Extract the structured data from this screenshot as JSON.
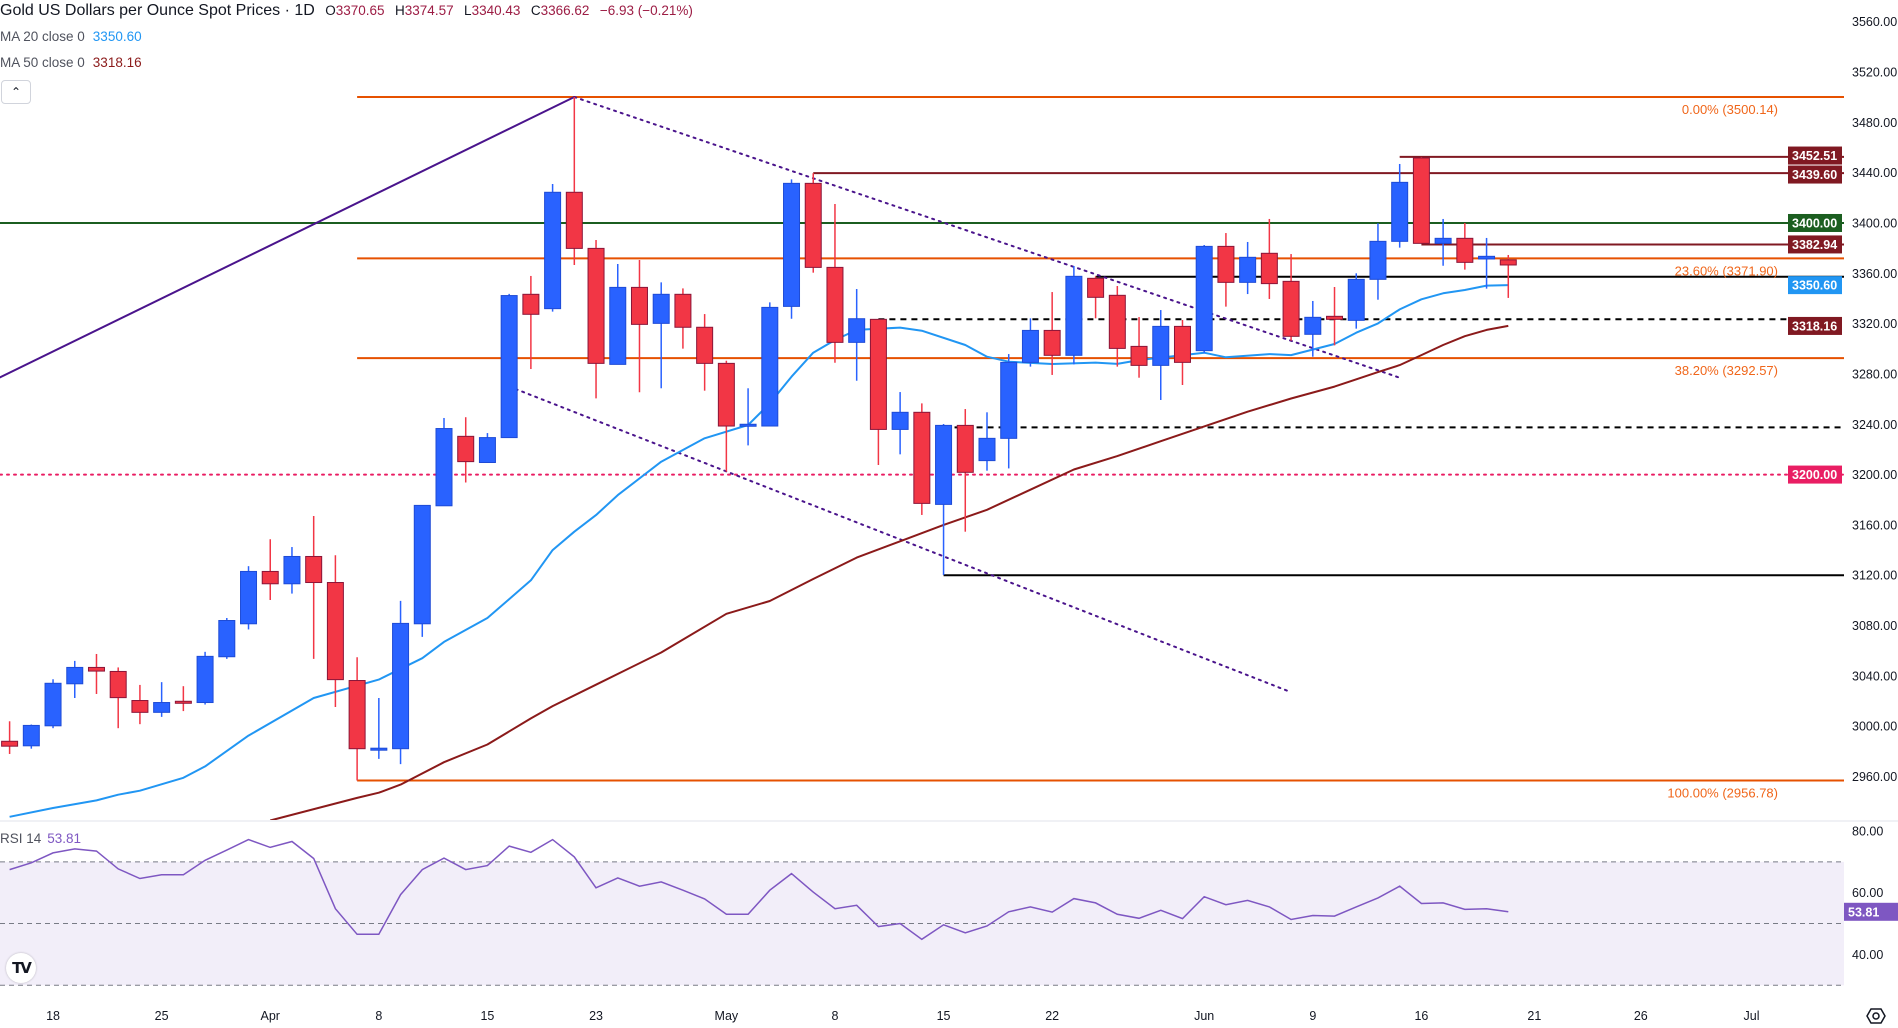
{
  "header": {
    "title": "Gold US Dollars per Ounce Spot Prices · 1D",
    "open_label": "O",
    "open": "3370.65",
    "high_label": "H",
    "high": "3374.57",
    "low_label": "L",
    "low": "3340.43",
    "close_label": "C",
    "close": "3366.62",
    "change": "−6.93 (−0.21%)"
  },
  "indicators": {
    "ma20": {
      "label": "MA 20 close 0",
      "value": "3350.60",
      "color": "#2196f3"
    },
    "ma50": {
      "label": "MA 50 close 0",
      "value": "3318.16",
      "color": "#8b1a1a"
    },
    "rsi": {
      "label": "RSI 14",
      "value": "53.81",
      "color": "#7e57c2"
    }
  },
  "controls": {
    "collapse_icon": "chevron-up-icon",
    "settings_icon": "gear-icon",
    "logo": "TV"
  },
  "colors": {
    "up": "#2962ff",
    "down": "#f23645",
    "fib": "#e65100",
    "resistance": "#801922",
    "support_3400": "#1b5e20",
    "level_3200": "#e91e63",
    "trendline": "#4a148c"
  },
  "price_axis": {
    "ticks": [
      "3560.00",
      "3520.00",
      "3480.00",
      "3440.00",
      "3400.00",
      "3360.00",
      "3320.00",
      "3280.00",
      "3240.00",
      "3200.00",
      "3160.00",
      "3120.00",
      "3080.00",
      "3040.00",
      "3000.00",
      "2960.00"
    ]
  },
  "rsi_axis": {
    "ticks": [
      "80.00",
      "60.00",
      "40.00"
    ],
    "bands": [
      70,
      50,
      30
    ]
  },
  "time_axis": {
    "labels": [
      "18",
      "25",
      "Apr",
      "8",
      "15",
      "23",
      "May",
      "8",
      "15",
      "22",
      "Jun",
      "9",
      "16",
      "21",
      "26",
      "Jul"
    ]
  },
  "badges": [
    {
      "text": "3452.51",
      "price": 3452.51,
      "color": "#801922"
    },
    {
      "text": "3439.60",
      "price": 3439.6,
      "color": "#801922"
    },
    {
      "text": "3400.00",
      "price": 3400.0,
      "color": "#1b5e20"
    },
    {
      "text": "3382.94",
      "price": 3382.94,
      "color": "#801922"
    },
    {
      "text": "3350.60",
      "price": 3350.6,
      "color": "#2196f3"
    },
    {
      "text": "3318.16",
      "price": 3318.16,
      "color": "#801922"
    },
    {
      "text": "3200.00",
      "price": 3200.0,
      "color": "#e91e63"
    }
  ],
  "rsi_badge": {
    "text": "53.81",
    "value": 53.81,
    "color": "#7e57c2"
  },
  "fib_levels": [
    {
      "label": "0.00% (3500.14)",
      "price": 3500.14
    },
    {
      "label": "23.60% (3371.90)",
      "price": 3371.9
    },
    {
      "label": "38.20% (3292.57)",
      "price": 3292.57
    },
    {
      "label": "100.00% (2956.78)",
      "price": 2956.78
    }
  ],
  "fib_start": "Apr 7",
  "horizontal_lines": [
    {
      "price": 3452.51,
      "from": "Jun 13",
      "color": "#801922",
      "style": "solid"
    },
    {
      "price": 3439.6,
      "from": "May 7",
      "color": "#801922",
      "style": "solid"
    },
    {
      "price": 3400.0,
      "from": null,
      "color": "#1b5e20",
      "style": "solid"
    },
    {
      "price": 3382.94,
      "from": "Jun 16",
      "color": "#801922",
      "style": "solid"
    },
    {
      "price": 3357.3,
      "from": "May 26",
      "color": "#000000",
      "style": "solid"
    },
    {
      "price": 3323.5,
      "from": "May 12",
      "color": "#000000",
      "style": "dashed"
    },
    {
      "price": 3237.5,
      "from": "May 15",
      "color": "#000000",
      "style": "dashed"
    },
    {
      "price": 3200.0,
      "from": null,
      "color": "#e91e63",
      "style": "dotted"
    },
    {
      "price": 3120.0,
      "from": "May 15",
      "color": "#000000",
      "style": "solid"
    }
  ],
  "trend_lines": [
    {
      "from": [
        "Mar 14",
        3281
      ],
      "to": [
        "Apr 22",
        3500.14
      ],
      "extend_left": true,
      "color": "#4a148c",
      "style": "solid"
    },
    {
      "from": [
        "Apr 22",
        3500.14
      ],
      "to": [
        "Jun 13",
        3277
      ],
      "color": "#4a148c",
      "style": "dotted"
    },
    {
      "from": [
        "Apr 16",
        3270
      ],
      "to": [
        "Jun 6",
        3027
      ],
      "color": "#4a148c",
      "style": "dotted"
    }
  ],
  "chart_data": {
    "type": "candlestick",
    "price_range": [
      2935,
      3577
    ],
    "columns": [
      "date",
      "open",
      "high",
      "low",
      "close"
    ],
    "candles": [
      [
        "Mar 14",
        2988.0,
        3003.9,
        2977.9,
        2984.1
      ],
      [
        "Mar 17",
        2984.4,
        3001.3,
        2982.1,
        3000.6
      ],
      [
        "Mar 18",
        3000.3,
        3037.3,
        2998.4,
        3034.1
      ],
      [
        "Mar 19",
        3033.7,
        3051.9,
        3022.4,
        3046.7
      ],
      [
        "Mar 20",
        3046.7,
        3057.4,
        3025.6,
        3043.8
      ],
      [
        "Mar 21",
        3043.5,
        3046.7,
        2998.4,
        3022.7
      ],
      [
        "Mar 24",
        3020.4,
        3032.8,
        3001.6,
        3011.0
      ],
      [
        "Mar 25",
        3011.0,
        3035.0,
        3007.4,
        3018.8
      ],
      [
        "Mar 26",
        3019.8,
        3031.8,
        3012.0,
        3019.6
      ],
      [
        "Mar 27",
        3018.8,
        3059.1,
        3017.2,
        3055.5
      ],
      [
        "Mar 28",
        3055.2,
        3086.0,
        3053.5,
        3084.0
      ],
      [
        "Mar 31",
        3081.4,
        3127.2,
        3076.9,
        3123.0
      ],
      [
        "Apr 1",
        3123.0,
        3148.6,
        3100.3,
        3113.2
      ],
      [
        "Apr 2",
        3113.2,
        3142.4,
        3105.4,
        3134.9
      ],
      [
        "Apr 3",
        3134.9,
        3167.1,
        3053.5,
        3114.2
      ],
      [
        "Apr 4",
        3114.2,
        3135.9,
        3015.2,
        3037.0
      ],
      [
        "Apr 7",
        3036.3,
        3054.8,
        2956.8,
        2982.1
      ],
      [
        "Apr 8",
        2982.1,
        3022.4,
        2974.0,
        2982.5
      ],
      [
        "Apr 9",
        2982.1,
        3099.6,
        2969.8,
        3081.7
      ],
      [
        "Apr 10",
        3081.4,
        3175.5,
        3071.0,
        3175.5
      ],
      [
        "Apr 11",
        3175.2,
        3245.0,
        3175.2,
        3236.6
      ],
      [
        "Apr 14",
        3230.4,
        3245.6,
        3193.7,
        3210.3
      ],
      [
        "Apr 15",
        3209.6,
        3233.0,
        3209.6,
        3229.4
      ],
      [
        "Apr 16",
        3229.4,
        3343.6,
        3229.4,
        3342.3
      ],
      [
        "Apr 17",
        3343.3,
        3357.9,
        3283.9,
        3327.4
      ],
      [
        "Apr 21",
        3331.9,
        3431.0,
        3329.5,
        3424.4
      ],
      [
        "Apr 22",
        3424.4,
        3500.1,
        3366.6,
        3379.8
      ],
      [
        "Apr 23",
        3379.8,
        3386.5,
        3260.6,
        3288.4
      ],
      [
        "Apr 24",
        3287.6,
        3367.4,
        3287.6,
        3348.8
      ],
      [
        "Apr 25",
        3348.8,
        3370.6,
        3265.4,
        3319.4
      ],
      [
        "Apr 28",
        3320.2,
        3352.8,
        3268.6,
        3343.3
      ],
      [
        "Apr 29",
        3343.3,
        3348.0,
        3300.1,
        3317.1
      ],
      [
        "Apr 30",
        3317.1,
        3327.6,
        3266.7,
        3288.4
      ],
      [
        "May 1",
        3288.4,
        3290.5,
        3202.3,
        3238.6
      ],
      [
        "May 2",
        3239.4,
        3268.6,
        3223.2,
        3240.0
      ],
      [
        "May 5",
        3238.6,
        3336.9,
        3238.6,
        3332.9
      ],
      [
        "May 6",
        3333.7,
        3434.7,
        3323.9,
        3431.5
      ],
      [
        "May 7",
        3431.5,
        3439.6,
        3360.5,
        3364.7
      ],
      [
        "May 8",
        3364.7,
        3415.1,
        3288.9,
        3305.1
      ],
      [
        "May 9",
        3305.1,
        3347.5,
        3274.6,
        3323.9
      ],
      [
        "May 12",
        3323.4,
        3323.4,
        3207.6,
        3235.9
      ],
      [
        "May 13",
        3235.9,
        3265.6,
        3216.1,
        3249.5
      ],
      [
        "May 14",
        3249.5,
        3256.6,
        3167.9,
        3177.1
      ],
      [
        "May 15",
        3176.3,
        3240.2,
        3120.2,
        3239.1
      ],
      [
        "May 16",
        3239.1,
        3252.1,
        3154.6,
        3201.8
      ],
      [
        "May 19",
        3211.1,
        3249.5,
        3203.1,
        3228.8
      ],
      [
        "May 20",
        3228.8,
        3295.8,
        3204.9,
        3289.2
      ],
      [
        "May 21",
        3289.2,
        3324.2,
        3285.8,
        3314.6
      ],
      [
        "May 22",
        3314.6,
        3345.1,
        3279.2,
        3294.8
      ],
      [
        "May 23",
        3294.8,
        3365.8,
        3287.6,
        3357.6
      ],
      [
        "May 26",
        3356.0,
        3357.5,
        3324.2,
        3340.9
      ],
      [
        "May 27",
        3342.5,
        3349.9,
        3285.8,
        3300.3
      ],
      [
        "May 28",
        3301.9,
        3325.2,
        3277.0,
        3286.8
      ],
      [
        "May 29",
        3286.8,
        3330.8,
        3259.3,
        3317.8
      ],
      [
        "May 30",
        3317.8,
        3322.9,
        3271.2,
        3289.2
      ],
      [
        "Jun 2",
        3298.5,
        3382.5,
        3296.4,
        3381.4
      ],
      [
        "Jun 3",
        3381.4,
        3392.0,
        3333.5,
        3352.8
      ],
      [
        "Jun 4",
        3352.8,
        3384.9,
        3343.5,
        3372.7
      ],
      [
        "Jun 5",
        3375.9,
        3403.2,
        3339.6,
        3351.8
      ],
      [
        "Jun 6",
        3353.6,
        3375.3,
        3306.4,
        3309.9
      ],
      [
        "Jun 9",
        3311.5,
        3338.0,
        3293.7,
        3325.0
      ],
      [
        "Jun 10",
        3325.8,
        3349.1,
        3302.7,
        3323.4
      ],
      [
        "Jun 11",
        3322.6,
        3360.0,
        3316.0,
        3355.2
      ],
      [
        "Jun 12",
        3355.2,
        3399.7,
        3339.0,
        3385.4
      ],
      [
        "Jun 13",
        3385.4,
        3446.9,
        3380.4,
        3432.3
      ],
      [
        "Jun 16",
        3451.7,
        3452.5,
        3383.8,
        3383.8
      ],
      [
        "Jun 17",
        3383.8,
        3403.2,
        3366.0,
        3387.8
      ],
      [
        "Jun 18",
        3387.8,
        3400.0,
        3362.9,
        3368.7
      ],
      [
        "Jun 19",
        3371.4,
        3388.1,
        3347.8,
        3373.5
      ],
      [
        "Jun 20",
        3370.65,
        3374.57,
        3340.43,
        3366.62
      ]
    ],
    "ma20": [
      [
        "Mar 14",
        2928
      ],
      [
        "Mar 18",
        2935
      ],
      [
        "Mar 20",
        2941
      ],
      [
        "Mar 21",
        2945.5
      ],
      [
        "Mar 24",
        2948.7
      ],
      [
        "Mar 26",
        2959
      ],
      [
        "Mar 27",
        2968
      ],
      [
        "Mar 31",
        2992.5
      ],
      [
        "Apr 3",
        3022.4
      ],
      [
        "Apr 8",
        3037
      ],
      [
        "Apr 10",
        3054
      ],
      [
        "Apr 11",
        3067
      ],
      [
        "Apr 15",
        3086
      ],
      [
        "Apr 17",
        3116
      ],
      [
        "Apr 21",
        3140
      ],
      [
        "Apr 22",
        3154.6
      ],
      [
        "Apr 23",
        3167.8
      ],
      [
        "Apr 24",
        3183.7
      ],
      [
        "Apr 28",
        3210.2
      ],
      [
        "Apr 30",
        3228.8
      ],
      [
        "May 2",
        3239.4
      ],
      [
        "May 5",
        3256.6
      ],
      [
        "May 6",
        3277.8
      ],
      [
        "May 7",
        3296.9
      ],
      [
        "May 8",
        3307
      ],
      [
        "May 9",
        3315
      ],
      [
        "May 13",
        3316.8
      ],
      [
        "May 14",
        3314.4
      ],
      [
        "May 16",
        3303
      ],
      [
        "May 19",
        3293.7
      ],
      [
        "May 20",
        3289.7
      ],
      [
        "May 22",
        3287.9
      ],
      [
        "May 26",
        3289
      ],
      [
        "May 27",
        3288
      ],
      [
        "May 28",
        3291
      ],
      [
        "Jun 2",
        3296.9
      ],
      [
        "Jun 3",
        3293.2
      ],
      [
        "Jun 5",
        3295.8
      ],
      [
        "Jun 6",
        3295
      ],
      [
        "Jun 10",
        3303.8
      ],
      [
        "Jun 11",
        3312.8
      ],
      [
        "Jun 12",
        3320.2
      ],
      [
        "Jun 13",
        3331.3
      ],
      [
        "Jun 16",
        3339.3
      ],
      [
        "Jun 17",
        3344.1
      ],
      [
        "Jun 18",
        3346.7
      ],
      [
        "Jun 19",
        3350.2
      ],
      [
        "Jun 20",
        3350.6
      ]
    ],
    "ma50": [
      [
        "Apr 1",
        2925
      ],
      [
        "Apr 7",
        2943
      ],
      [
        "Apr 8",
        2947.1
      ],
      [
        "Apr 9",
        2953.6
      ],
      [
        "Apr 11",
        2971.4
      ],
      [
        "Apr 15",
        2985.4
      ],
      [
        "Apr 17",
        3006.2
      ],
      [
        "Apr 21",
        3016
      ],
      [
        "Apr 23",
        3033
      ],
      [
        "Apr 28",
        3058.6
      ],
      [
        "May 1",
        3089.3
      ],
      [
        "May 5",
        3099.5
      ],
      [
        "May 7",
        3117
      ],
      [
        "May 9",
        3134
      ],
      [
        "May 13",
        3147
      ],
      [
        "May 15",
        3160
      ],
      [
        "May 19",
        3172
      ],
      [
        "May 21",
        3188
      ],
      [
        "May 23",
        3204
      ],
      [
        "May 27",
        3214.7
      ],
      [
        "May 29",
        3226.5
      ],
      [
        "Jun 2",
        3238.3
      ],
      [
        "Jun 4",
        3250
      ],
      [
        "Jun 6",
        3260.5
      ],
      [
        "Jun 10",
        3269.9
      ],
      [
        "Jun 12",
        3281.5
      ],
      [
        "Jun 13",
        3287
      ],
      [
        "Jun 16",
        3295
      ],
      [
        "Jun 17",
        3303
      ],
      [
        "Jun 18",
        3310
      ],
      [
        "Jun 19",
        3315
      ],
      [
        "Jun 20",
        3318.16
      ]
    ],
    "rsi": [
      67.5,
      69.7,
      72.9,
      74.2,
      73.5,
      67.7,
      64.6,
      65.8,
      65.8,
      70.5,
      73.8,
      77.2,
      74.7,
      76.6,
      71.1,
      54.8,
      46.5,
      46.5,
      59.4,
      67.5,
      71.2,
      67.5,
      68.8,
      75.1,
      73.1,
      77.2,
      71.6,
      61.6,
      64.8,
      62.1,
      63.5,
      60.8,
      58.0,
      53.0,
      53.0,
      60.8,
      66.2,
      60.2,
      54.8,
      55.9,
      49.0,
      50.0,
      44.9,
      49.6,
      47.0,
      49.2,
      53.8,
      55.4,
      53.7,
      58.1,
      56.7,
      53.0,
      51.7,
      54.3,
      51.6,
      58.7,
      56.1,
      57.5,
      55.4,
      51.3,
      52.6,
      52.4,
      55.4,
      58.3,
      62.1,
      56.5,
      56.7,
      54.6,
      54.8,
      53.81
    ]
  }
}
